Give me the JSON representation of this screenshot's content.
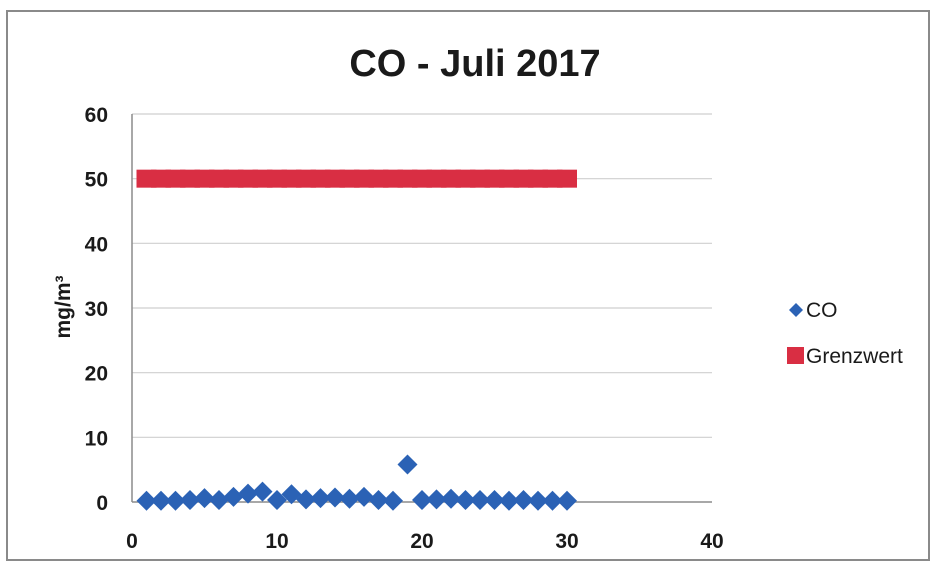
{
  "chart_data": {
    "type": "scatter",
    "title": "CO -  Juli 2017",
    "xlabel": "",
    "ylabel": "mg/m³",
    "xlim": [
      0,
      40
    ],
    "ylim": [
      0,
      60
    ],
    "xticks": [
      0,
      10,
      20,
      30,
      40
    ],
    "yticks": [
      0,
      10,
      20,
      30,
      40,
      50,
      60
    ],
    "grid": "horizontal",
    "legend_position": "right",
    "series": [
      {
        "name": "CO",
        "color": "#2b62b5",
        "marker": "diamond",
        "x": [
          1,
          2,
          3,
          4,
          5,
          6,
          7,
          8,
          9,
          10,
          11,
          12,
          13,
          14,
          15,
          16,
          17,
          18,
          19,
          20,
          21,
          22,
          23,
          24,
          25,
          26,
          27,
          28,
          29,
          30
        ],
        "y": [
          0.2,
          0.2,
          0.2,
          0.3,
          0.6,
          0.3,
          0.8,
          1.3,
          1.6,
          0.3,
          1.2,
          0.4,
          0.6,
          0.7,
          0.5,
          0.8,
          0.3,
          0.2,
          5.8,
          0.3,
          0.4,
          0.5,
          0.3,
          0.3,
          0.3,
          0.2,
          0.3,
          0.2,
          0.2,
          0.2
        ]
      },
      {
        "name": "Grenzwert",
        "color": "#d92e43",
        "marker": "square",
        "x": [
          1,
          2,
          3,
          4,
          5,
          6,
          7,
          8,
          9,
          10,
          11,
          12,
          13,
          14,
          15,
          16,
          17,
          18,
          19,
          20,
          21,
          22,
          23,
          24,
          25,
          26,
          27,
          28,
          29,
          30
        ],
        "y": [
          50,
          50,
          50,
          50,
          50,
          50,
          50,
          50,
          50,
          50,
          50,
          50,
          50,
          50,
          50,
          50,
          50,
          50,
          50,
          50,
          50,
          50,
          50,
          50,
          50,
          50,
          50,
          50,
          50,
          50
        ]
      }
    ]
  }
}
